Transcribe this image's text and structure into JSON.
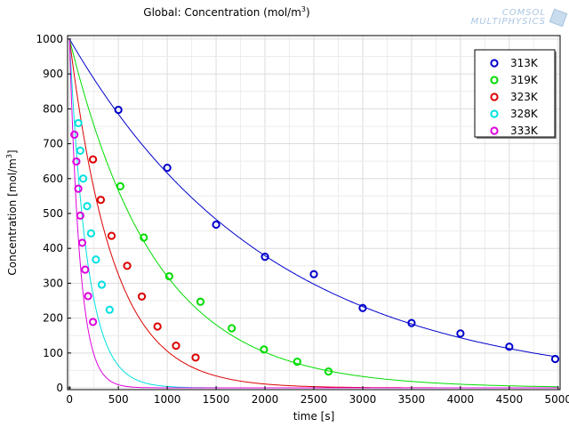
{
  "header": {
    "title_text": "Global: Concentration (mol/m",
    "title_sup": "3",
    "title_close": ")"
  },
  "logo": {
    "line1": "COMSOL",
    "line2": "MULTIPHYSICS"
  },
  "chart_data": {
    "type": "scatter",
    "title": "Global: Concentration (mol/m3)",
    "xlabel": "time [s]",
    "ylabel": "Concentration [mol/m3]",
    "ylabel_base": "Concentration [mol/m",
    "ylabel_sup": "3",
    "ylabel_close": "]",
    "xlim": [
      -20,
      5020
    ],
    "ylim": [
      -5,
      1010
    ],
    "xticks": [
      0,
      500,
      1000,
      1500,
      2000,
      2500,
      3000,
      3500,
      4000,
      4500,
      5000
    ],
    "yticks": [
      0,
      100,
      200,
      300,
      400,
      500,
      600,
      700,
      800,
      900,
      1000
    ],
    "grid": true,
    "legend_position": "top-right",
    "fit_lines": true,
    "series": [
      {
        "name": "313K",
        "color": "#0000cc",
        "fit_k": 0.000485,
        "x": [
          500,
          1000,
          1500,
          2000,
          2500,
          3000,
          3500,
          4000,
          4500,
          4970
        ],
        "y": [
          797,
          631,
          468,
          376,
          326,
          229,
          186,
          156,
          118,
          83
        ]
      },
      {
        "name": "319K",
        "color": "#00dd00",
        "fit_k": 0.00114,
        "x": [
          520,
          760,
          1020,
          1340,
          1660,
          1990,
          2330,
          2650
        ],
        "y": [
          578,
          431,
          320,
          247,
          171,
          110,
          75,
          47
        ]
      },
      {
        "name": "323K",
        "color": "#dd0000",
        "fit_k": 0.00225,
        "x": [
          240,
          320,
          430,
          590,
          740,
          900,
          1090,
          1290
        ],
        "y": [
          655,
          539,
          436,
          350,
          262,
          176,
          121,
          87
        ]
      },
      {
        "name": "328K",
        "color": "#00e0e0",
        "fit_k": 0.0055,
        "x": [
          90,
          110,
          140,
          180,
          220,
          270,
          330,
          410
        ],
        "y": [
          759,
          680,
          600,
          521,
          443,
          368,
          296,
          224
        ]
      },
      {
        "name": "333K",
        "color": "#dd00dd",
        "fit_k": 0.0094,
        "x": [
          50,
          70,
          90,
          110,
          130,
          160,
          190,
          240
        ],
        "y": [
          726,
          649,
          571,
          494,
          416,
          339,
          263,
          189
        ]
      }
    ]
  }
}
